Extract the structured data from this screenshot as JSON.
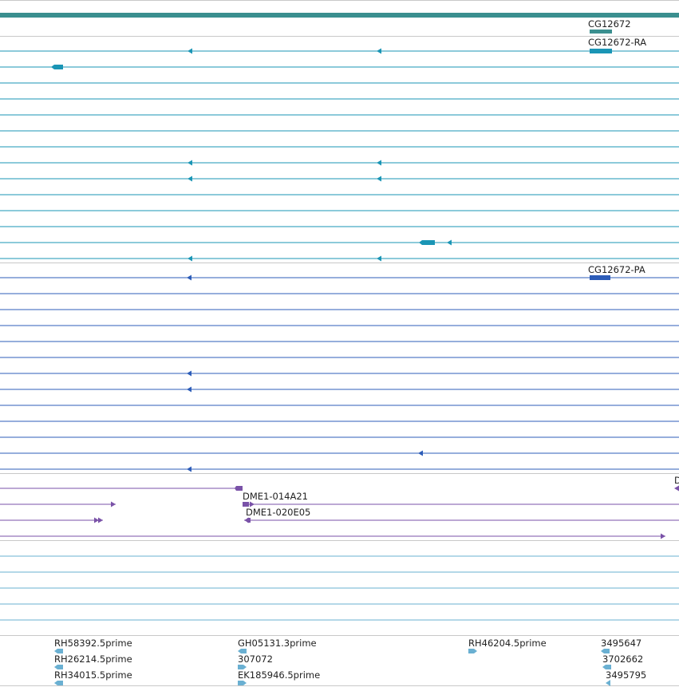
{
  "colors": {
    "background": "#ffffff",
    "gene_track": "#3a8f8f",
    "transcript_rna": "#1a95b5",
    "transcript_protein": "#2c5cb8",
    "clone_track": "#7a52a8",
    "est_track": "#6ab0d2",
    "separator": "#c8c8c8"
  },
  "tracks": {
    "gene": {
      "label": "CG12672"
    },
    "rna": {
      "label": "CG12672-RA"
    },
    "protein": {
      "label": "CG12672-PA"
    },
    "clones": {
      "labels": [
        "DME1-014A21",
        "DME1-020E05",
        "D"
      ]
    },
    "ests": {
      "labels": [
        "RH58392.5prime",
        "RH26214.5prime",
        "RH34015.5prime",
        "GH05131.3prime",
        "307072",
        "EK185946.5prime",
        "RH46204.5prime",
        "3495647",
        "3702662",
        "3495795"
      ]
    }
  }
}
